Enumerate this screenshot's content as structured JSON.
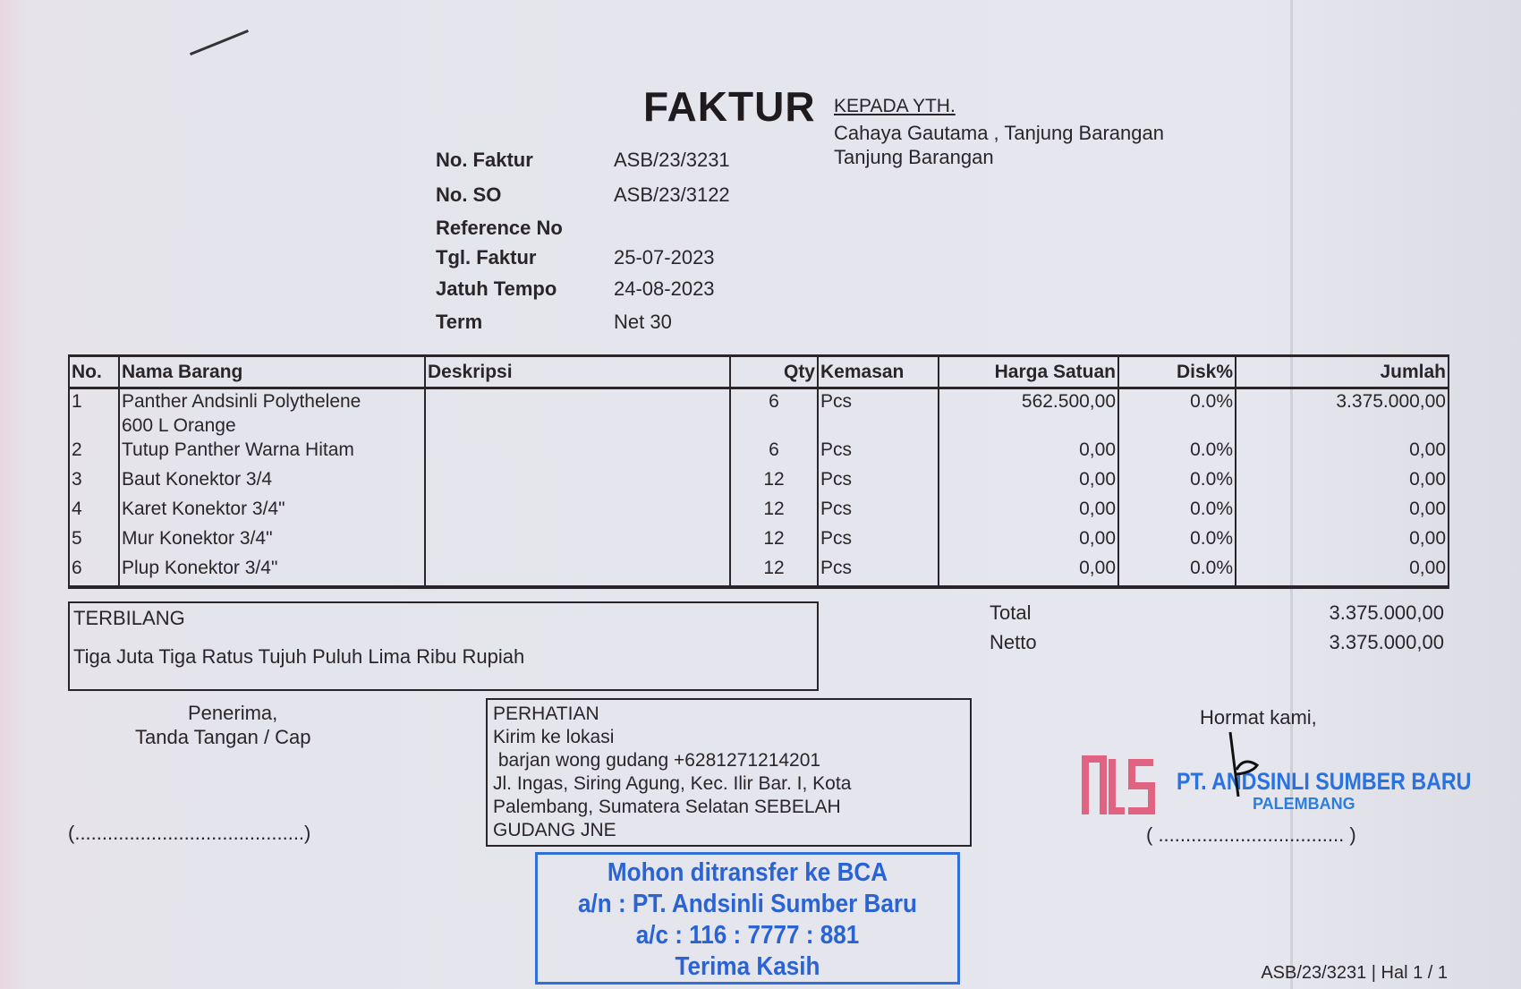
{
  "header": {
    "title": "FAKTUR",
    "recipient_label": "KEPADA YTH.",
    "recipient_lines": [
      "Cahaya Gautama , Tanjung Barangan",
      "Tanjung Barangan"
    ]
  },
  "meta": [
    {
      "label": "No. Faktur",
      "value": "ASB/23/3231"
    },
    {
      "label": "No. SO",
      "value": "ASB/23/3122"
    },
    {
      "label": "Reference No",
      "value": ""
    },
    {
      "label": "Tgl. Faktur",
      "value": "25-07-2023"
    },
    {
      "label": "Jatuh Tempo",
      "value": "24-08-2023"
    },
    {
      "label": "Term",
      "value": "Net 30"
    }
  ],
  "table": {
    "headers": [
      "No.",
      "Nama Barang",
      "Deskripsi",
      "Qty",
      "Kemasan",
      "Harga Satuan",
      "Disk%",
      "Jumlah"
    ],
    "rows": [
      {
        "no": "1",
        "name": "Panther Andsinli Polythelene",
        "name2": "600 L Orange",
        "desc": "",
        "qty": "6",
        "unit": "Pcs",
        "price": "562.500,00",
        "disc": "0.0%",
        "amount": "3.375.000,00"
      },
      {
        "no": "2",
        "name": "Tutup Panther Warna Hitam",
        "desc": "",
        "qty": "6",
        "unit": "Pcs",
        "price": "0,00",
        "disc": "0.0%",
        "amount": "0,00"
      },
      {
        "no": "3",
        "name": "Baut Konektor 3/4",
        "desc": "",
        "qty": "12",
        "unit": "Pcs",
        "price": "0,00",
        "disc": "0.0%",
        "amount": "0,00"
      },
      {
        "no": "4",
        "name": "Karet Konektor 3/4\"",
        "desc": "",
        "qty": "12",
        "unit": "Pcs",
        "price": "0,00",
        "disc": "0.0%",
        "amount": "0,00"
      },
      {
        "no": "5",
        "name": "Mur Konektor 3/4\"",
        "desc": "",
        "qty": "12",
        "unit": "Pcs",
        "price": "0,00",
        "disc": "0.0%",
        "amount": "0,00"
      },
      {
        "no": "6",
        "name": "Plup Konektor 3/4\"",
        "desc": "",
        "qty": "12",
        "unit": "Pcs",
        "price": "0,00",
        "disc": "0.0%",
        "amount": "0,00"
      }
    ]
  },
  "terbilang": {
    "label": "TERBILANG",
    "text": "Tiga Juta Tiga Ratus Tujuh Puluh Lima Ribu Rupiah"
  },
  "totals": {
    "total_label": "Total",
    "total_value": "3.375.000,00",
    "netto_label": "Netto",
    "netto_value": "3.375.000,00"
  },
  "receiver": {
    "line1": "Penerima,",
    "line2": "Tanda Tangan / Cap",
    "signature_line": "(..........................................)"
  },
  "notice": {
    "lines": [
      "PERHATIAN",
      "Kirim ke lokasi",
      " barjan wong gudang +6281271214201",
      "Jl. Ingas, Siring Agung, Kec. Ilir Bar. I, Kota",
      "Palembang, Sumatera Selatan SEBELAH",
      "GUDANG JNE"
    ]
  },
  "bank_stamp": {
    "lines": [
      "Mohon ditransfer ke BCA",
      "a/n : PT. Andsinli Sumber Baru",
      "a/c : 116 : 7777 : 881",
      "Terima Kasih"
    ],
    "color": "#2a63d4"
  },
  "sender": {
    "greeting": "Hormat kami,",
    "logo_text": "ALS",
    "company": "PT. ANDSINLI SUMBER BARU",
    "city": "PALEMBANG",
    "signature_line": "( .................................. )",
    "logo_color": "#e06482",
    "stamp_color": "#2a72e0"
  },
  "footer": {
    "page_ref": "ASB/23/3231 | Hal 1 / 1"
  }
}
